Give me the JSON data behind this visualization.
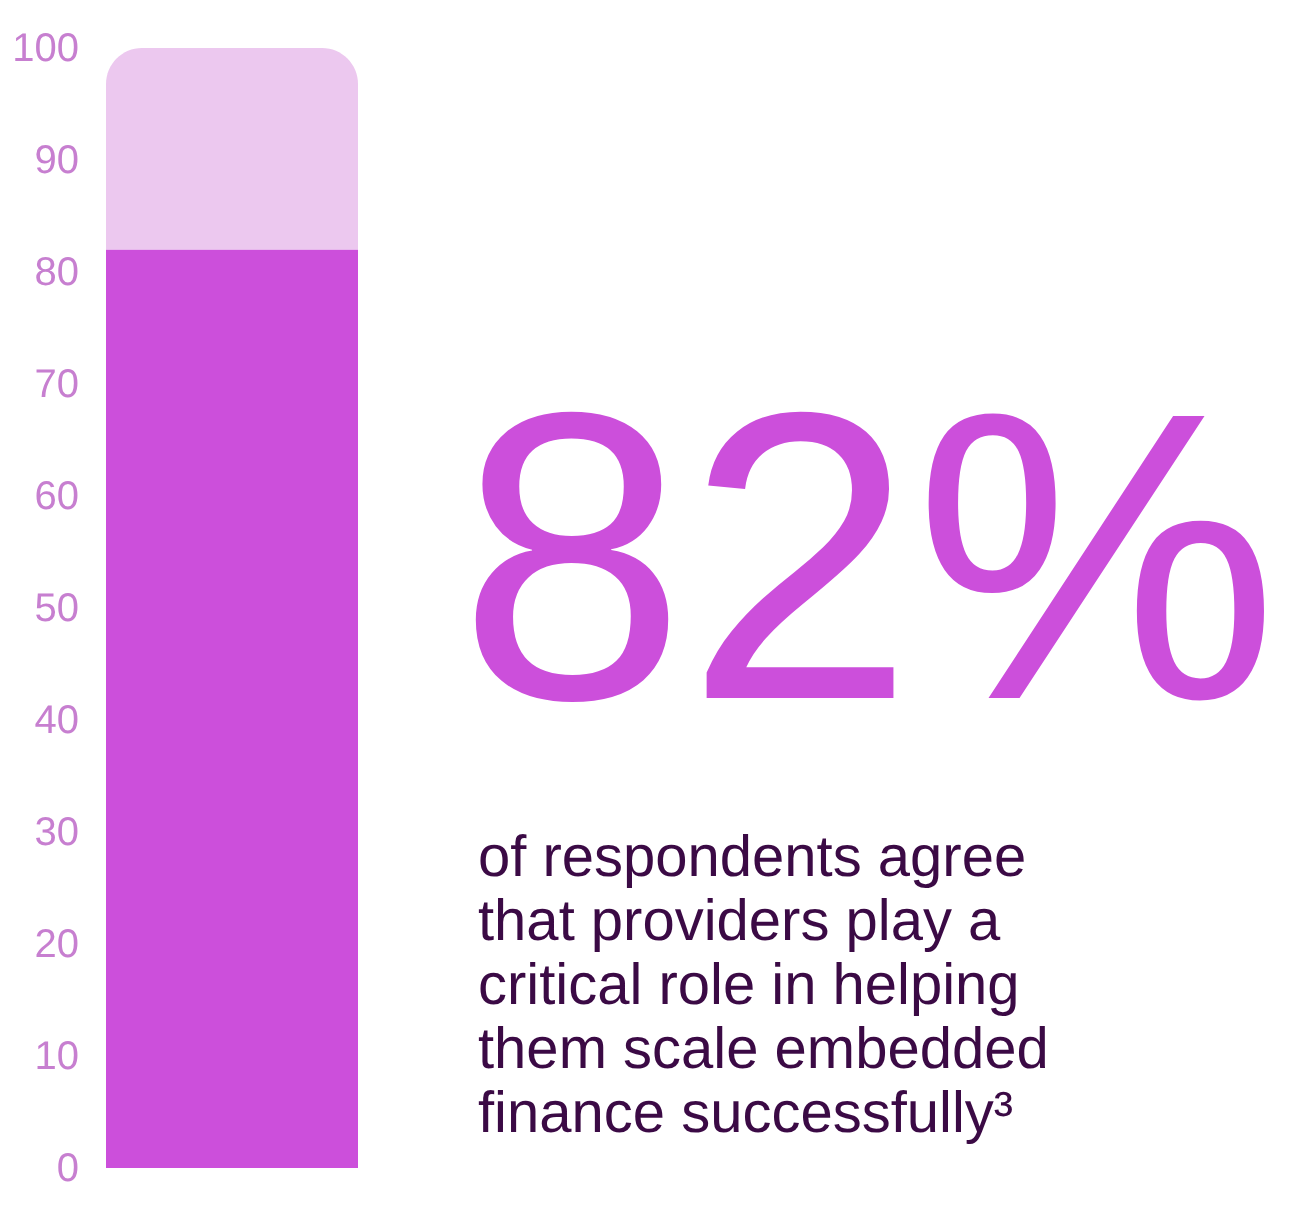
{
  "chart_data": {
    "type": "bar",
    "stacked": true,
    "categories": [
      null
    ],
    "series": [
      {
        "color": "#cc4fdb",
        "values": [
          82
        ]
      },
      {
        "color": "#ecc8ef",
        "values": [
          18
        ]
      }
    ],
    "ylim": [
      0,
      100
    ],
    "yticks": [
      0,
      10,
      20,
      30,
      40,
      50,
      60,
      70,
      80,
      90,
      100
    ],
    "grid": false,
    "legend": false,
    "tick_labels": "y",
    "annotations": [
      "82%",
      "of respondents agree that providers play a critical role in helping them scale embedded finance successfully³"
    ]
  }
}
